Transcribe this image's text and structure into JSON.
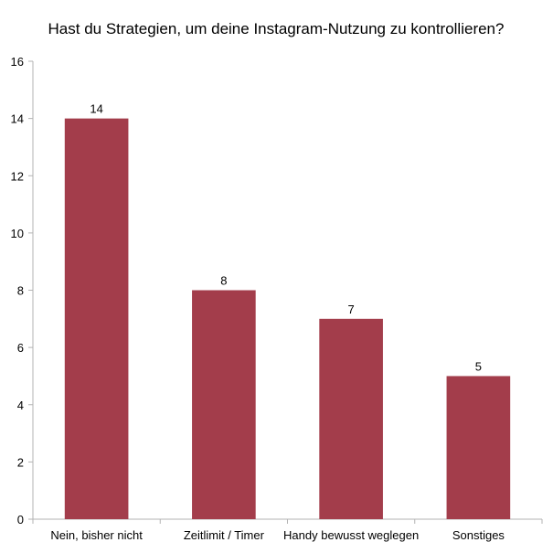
{
  "chart_data": {
    "type": "bar",
    "title": "Hast du Strategien, um deine Instagram-Nutzung zu kontrollieren?",
    "xlabel": "",
    "ylabel": "",
    "categories": [
      "Nein, bisher nicht",
      "Zeitlimit / Timer",
      "Handy bewusst weglegen",
      "Sonstiges"
    ],
    "values": [
      14,
      8,
      7,
      5
    ],
    "data_labels": [
      "14",
      "8",
      "7",
      "5"
    ],
    "ylim": [
      0,
      16
    ],
    "yticks": [
      0,
      2,
      4,
      6,
      8,
      10,
      12,
      14,
      16
    ],
    "grid": false,
    "legend": "none",
    "colors": {
      "bar": "#a33d4b",
      "axis": "#b3b3b3",
      "text": "#000000"
    }
  }
}
